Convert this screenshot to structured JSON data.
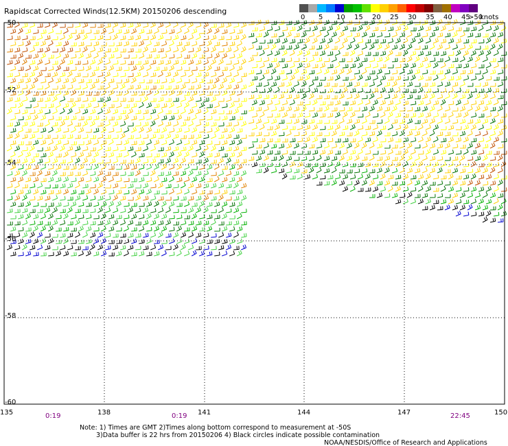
{
  "title": "Rapidscat Corrected Winds(12.5KM) 20150206 descending",
  "legend": {
    "unit": "knots",
    "bins": [
      {
        "label": "0",
        "color": "#505050"
      },
      {
        "label": "",
        "color": "#a8a8a8"
      },
      {
        "label": "5",
        "color": "#00b8ff"
      },
      {
        "label": "",
        "color": "#0078ff"
      },
      {
        "label": "10",
        "color": "#0000d0"
      },
      {
        "label": "",
        "color": "#00a000"
      },
      {
        "label": "15",
        "color": "#00c000"
      },
      {
        "label": "",
        "color": "#60e000"
      },
      {
        "label": "20",
        "color": "#ffff00"
      },
      {
        "label": "",
        "color": "#ffd000"
      },
      {
        "label": "25",
        "color": "#ffa000"
      },
      {
        "label": "",
        "color": "#ff6000"
      },
      {
        "label": "30",
        "color": "#ff0000"
      },
      {
        "label": "",
        "color": "#c00000"
      },
      {
        "label": "35",
        "color": "#800000"
      },
      {
        "label": "",
        "color": "#806040"
      },
      {
        "label": "40",
        "color": "#a07000"
      },
      {
        "label": "",
        "color": "#c000c0"
      },
      {
        "label": "45",
        "color": "#8000c0"
      },
      {
        "label": ">50",
        "color": "#600080"
      }
    ]
  },
  "axes": {
    "lon_ticks": [
      "135",
      "138",
      "141",
      "144",
      "147",
      "150"
    ],
    "lat_ticks": [
      "-50",
      "-52",
      "-54",
      "-56",
      "-58",
      "-60"
    ]
  },
  "pass_times": [
    "0:19",
    "0:19",
    "22:45"
  ],
  "notes": {
    "line1": "Note: 1) Times are GMT 2)Times along bottom correspond to measurement at -50S",
    "line2": "3)Data buffer is 22 hrs from 20150206 4) Black circles indicate possible contamination",
    "credit": "NOAA/NESDIS/Office of Research and Applications"
  },
  "wind_colors": {
    "black": "#000000",
    "blue": "#0000d0",
    "dark_green": "#007000",
    "green": "#00b000",
    "light_green": "#40d040",
    "yellow": "#ffff00",
    "gold": "#ffd000",
    "orange": "#e08000",
    "rust": "#c05000"
  }
}
